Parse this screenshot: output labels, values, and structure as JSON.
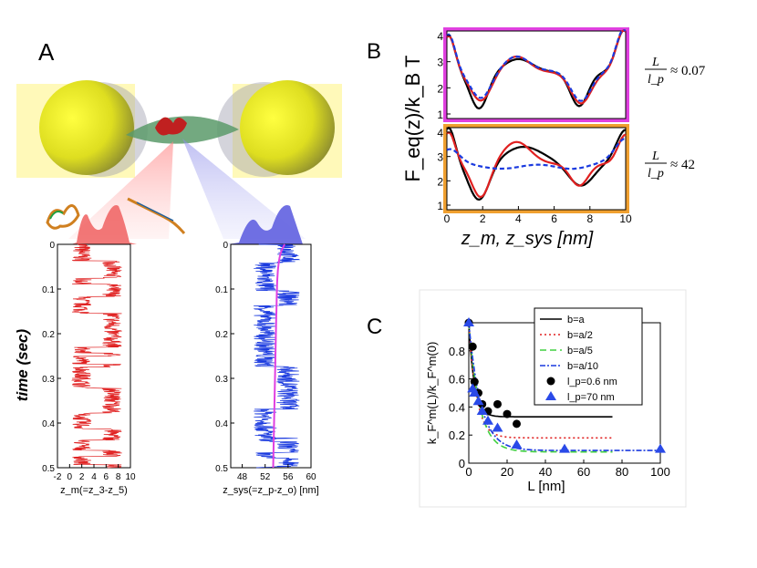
{
  "panels": {
    "A": "A",
    "B": "B",
    "C": "C"
  },
  "colors": {
    "red": "#e02020",
    "blue": "#1a3adf",
    "magenta": "#e040e0",
    "orange": "#f0a030",
    "green": "#40d040",
    "yellow": "#ffff30"
  },
  "chart_data": [
    {
      "id": "A-left",
      "type": "line",
      "xlabel": "z_m(=z_3-z_5)",
      "ylabel": "time (sec)",
      "xlim": [
        -2,
        10
      ],
      "ylim": [
        0,
        0.5
      ],
      "xticks": [
        "-2",
        "0",
        "2",
        "4",
        "6",
        "8",
        "10"
      ],
      "yticks": [
        "0",
        "0.1",
        "0.2",
        "0.3",
        "0.4",
        "0.5"
      ],
      "series": [
        {
          "color": "#e02020",
          "note": "two-state hopping trace between ~2 and ~7"
        }
      ]
    },
    {
      "id": "A-right",
      "type": "line",
      "xlabel": "z_sys(=z_p-z_o) [nm]",
      "xlim": [
        46,
        60
      ],
      "ylim": [
        0,
        0.5
      ],
      "xticks": [
        "48",
        "52",
        "56",
        "60"
      ],
      "yticks": [
        "0",
        "0.1",
        "0.2",
        "0.3",
        "0.4",
        "0.5"
      ],
      "series": [
        {
          "color": "#1a3adf"
        },
        {
          "color": "#e040e0"
        }
      ]
    },
    {
      "id": "B",
      "type": "line",
      "ylabel": "F_eq(z)/k_B T",
      "xlabel": "z_m, z_sys [nm]",
      "xlim": [
        0,
        10
      ],
      "xticks": [
        "0",
        "2",
        "4",
        "6",
        "8",
        "10"
      ],
      "top": {
        "yticks": [
          "1",
          "2",
          "3",
          "4"
        ],
        "ylim": [
          1,
          4
        ],
        "annotation_num": "L",
        "annotation_den": "l_p",
        "annotation_val": "≈ 0.07"
      },
      "bottom": {
        "yticks": [
          "1",
          "2",
          "3",
          "4"
        ],
        "ylim": [
          1,
          4
        ],
        "annotation_num": "L",
        "annotation_den": "l_p",
        "annotation_val": "≈ 42"
      }
    },
    {
      "id": "C",
      "type": "line",
      "xlabel": "L [nm]",
      "ylabel": "k_F^m(L)/k_F^m(0)",
      "xlim": [
        0,
        100
      ],
      "ylim": [
        0,
        1
      ],
      "xticks": [
        "0",
        "20",
        "40",
        "60",
        "80",
        "100"
      ],
      "yticks": [
        "0",
        "0.2",
        "0.4",
        "0.6",
        "0.8"
      ],
      "legend": [
        "b=a",
        "b=a/2",
        "b=a/5",
        "b=a/10",
        "l_p=0.6 nm",
        "l_p=70 nm"
      ],
      "series": [
        {
          "name": "b=a",
          "plateau": 0.33,
          "xmax": 75
        },
        {
          "name": "b=a/2",
          "plateau": 0.18,
          "xmax": 75
        },
        {
          "name": "b=a/5",
          "plateau": 0.08,
          "xmax": 75
        },
        {
          "name": "b=a/10",
          "plateau": 0.09,
          "xmax": 100
        },
        {
          "name": "l_p=0.6 nm",
          "x": [
            0,
            2,
            3,
            5,
            7,
            10,
            15,
            20,
            25
          ],
          "y": [
            1.0,
            0.83,
            0.58,
            0.5,
            0.42,
            0.37,
            0.42,
            0.35,
            0.28
          ]
        },
        {
          "name": "l_p=70 nm",
          "x": [
            0,
            2,
            3,
            5,
            7,
            10,
            15,
            25,
            50,
            100
          ],
          "y": [
            1.0,
            0.53,
            0.5,
            0.44,
            0.37,
            0.3,
            0.25,
            0.13,
            0.1,
            0.1
          ]
        }
      ]
    }
  ]
}
